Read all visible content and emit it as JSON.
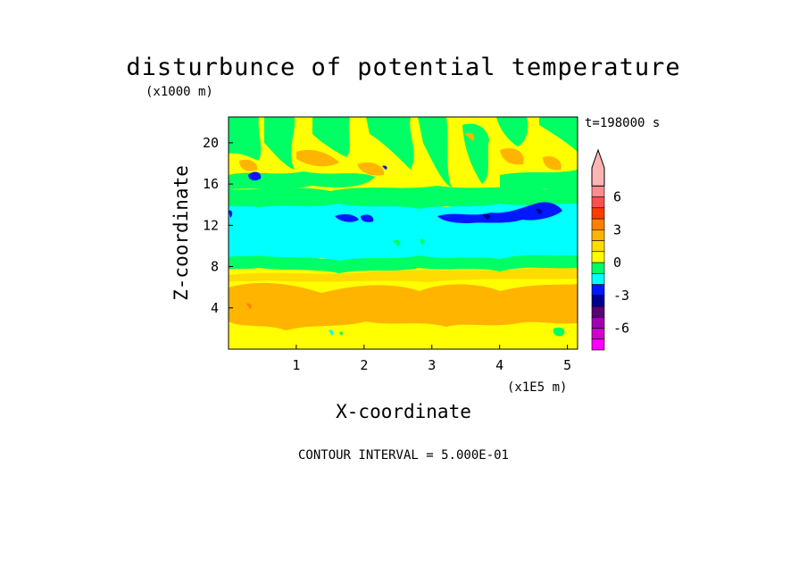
{
  "chart_data": {
    "type": "heatmap",
    "title": "disturbunce of potential temperature",
    "time_label": "t=198000 s",
    "contour_interval": "CONTOUR INTERVAL = 5.000E-01",
    "x_axis": {
      "label": "X-coordinate",
      "unit_label": "(x1E5 m)",
      "range": [
        0,
        5.15
      ],
      "ticks": [
        1,
        2,
        3,
        4,
        5
      ],
      "tick_labels": [
        "1",
        "2",
        "3",
        "4",
        "5"
      ]
    },
    "y_axis": {
      "label": "Z-coordinate",
      "unit_label": "(x1000 m)",
      "range": [
        0,
        22.5
      ],
      "ticks": [
        4,
        8,
        12,
        16,
        20
      ],
      "tick_labels": [
        "4",
        "8",
        "12",
        "16",
        "20"
      ]
    },
    "colorbar": {
      "levels": [
        -8,
        -7,
        -6,
        -5,
        -4,
        -3,
        -2,
        -1,
        0,
        1,
        2,
        3,
        4,
        5,
        6,
        7
      ],
      "colors": [
        "#ff00ff",
        "#d000d0",
        "#a000b0",
        "#5a0078",
        "#000090",
        "#0018ff",
        "#00ffff",
        "#00ff64",
        "#ffff00",
        "#ffdc00",
        "#ffb400",
        "#ff8000",
        "#ff3c00",
        "#ff5050",
        "#ff8c8c",
        "#ffb4b4"
      ],
      "tick_values": [
        6,
        3,
        0,
        -3,
        -6
      ],
      "tick_labels": [
        "6",
        "3",
        "0",
        "-3",
        "-6"
      ]
    },
    "bands": [
      {
        "z_range": [
          0,
          7.5
        ],
        "dominant": "yellow/orange",
        "value_range": [
          0,
          2
        ]
      },
      {
        "z_range": [
          7.5,
          9
        ],
        "dominant": "green",
        "value_range": [
          -1,
          0
        ]
      },
      {
        "z_range": [
          9,
          14.5
        ],
        "dominant": "cyan",
        "value_range": [
          -2,
          -1
        ]
      },
      {
        "z_range": [
          14.5,
          16
        ],
        "dominant": "green",
        "value_range": [
          -1,
          0
        ]
      },
      {
        "z_range": [
          16,
          22.5
        ],
        "dominant": "yellow/green mix",
        "value_range": [
          -1,
          2
        ]
      }
    ]
  }
}
